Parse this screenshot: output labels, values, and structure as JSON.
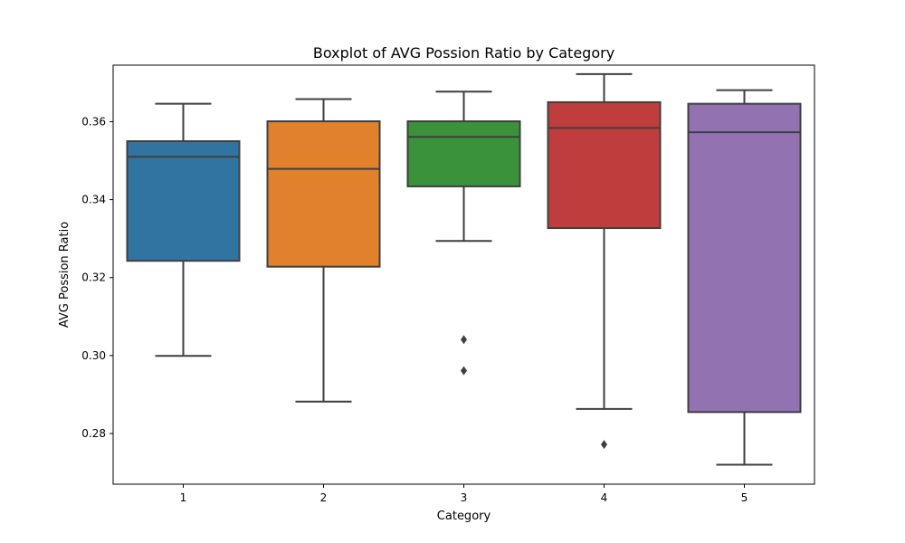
{
  "chart_data": {
    "type": "box",
    "title": "Boxplot of AVG Possion Ratio by Category",
    "xlabel": "Category",
    "ylabel": "AVG Possion Ratio",
    "ylim": [
      0.267,
      0.3745
    ],
    "yticks": [
      0.28,
      0.3,
      0.32,
      0.34,
      0.36
    ],
    "ytick_labels": [
      "0.28",
      "0.30",
      "0.32",
      "0.34",
      "0.36"
    ],
    "categories": [
      "1",
      "2",
      "3",
      "4",
      "5"
    ],
    "colors": [
      "#3274a1",
      "#e1812c",
      "#3a923a",
      "#c03d3e",
      "#9372b2"
    ],
    "boxes": [
      {
        "category": "1",
        "whislo": 0.2999,
        "q1": 0.3243,
        "med": 0.351,
        "q3": 0.355,
        "whishi": 0.3646,
        "fliers": []
      },
      {
        "category": "2",
        "whislo": 0.2882,
        "q1": 0.3228,
        "med": 0.3479,
        "q3": 0.3601,
        "whishi": 0.3658,
        "fliers": []
      },
      {
        "category": "3",
        "whislo": 0.3294,
        "q1": 0.3434,
        "med": 0.3561,
        "q3": 0.3601,
        "whishi": 0.3677,
        "fliers": [
          0.3041,
          0.2961
        ]
      },
      {
        "category": "4",
        "whislo": 0.2863,
        "q1": 0.3327,
        "med": 0.3584,
        "q3": 0.365,
        "whishi": 0.3722,
        "fliers": [
          0.2772
        ]
      },
      {
        "category": "5",
        "whislo": 0.272,
        "q1": 0.2855,
        "med": 0.3573,
        "q3": 0.3646,
        "whishi": 0.3681,
        "fliers": []
      }
    ]
  }
}
